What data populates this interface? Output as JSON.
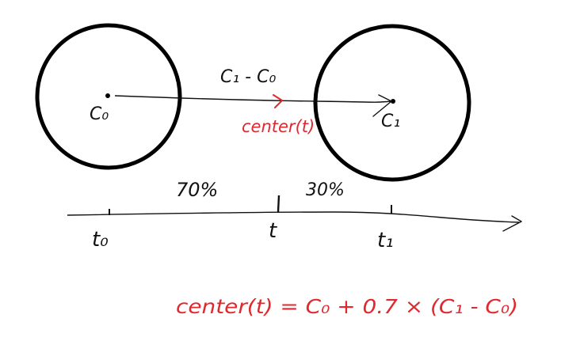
{
  "colors": {
    "ink": "#111111",
    "accent": "#e0282e",
    "background": "#ffffff"
  },
  "labels": {
    "c0": "C₀",
    "c1": "C₁",
    "vector": "C₁ - C₀",
    "center_point": "center(t)",
    "pct_left": "70%",
    "pct_right": "30%",
    "t0": "t₀",
    "t": "t",
    "t1": "t₁"
  },
  "formula": "center(t) = C₀ + 0.7 × (C₁ - C₀)"
}
